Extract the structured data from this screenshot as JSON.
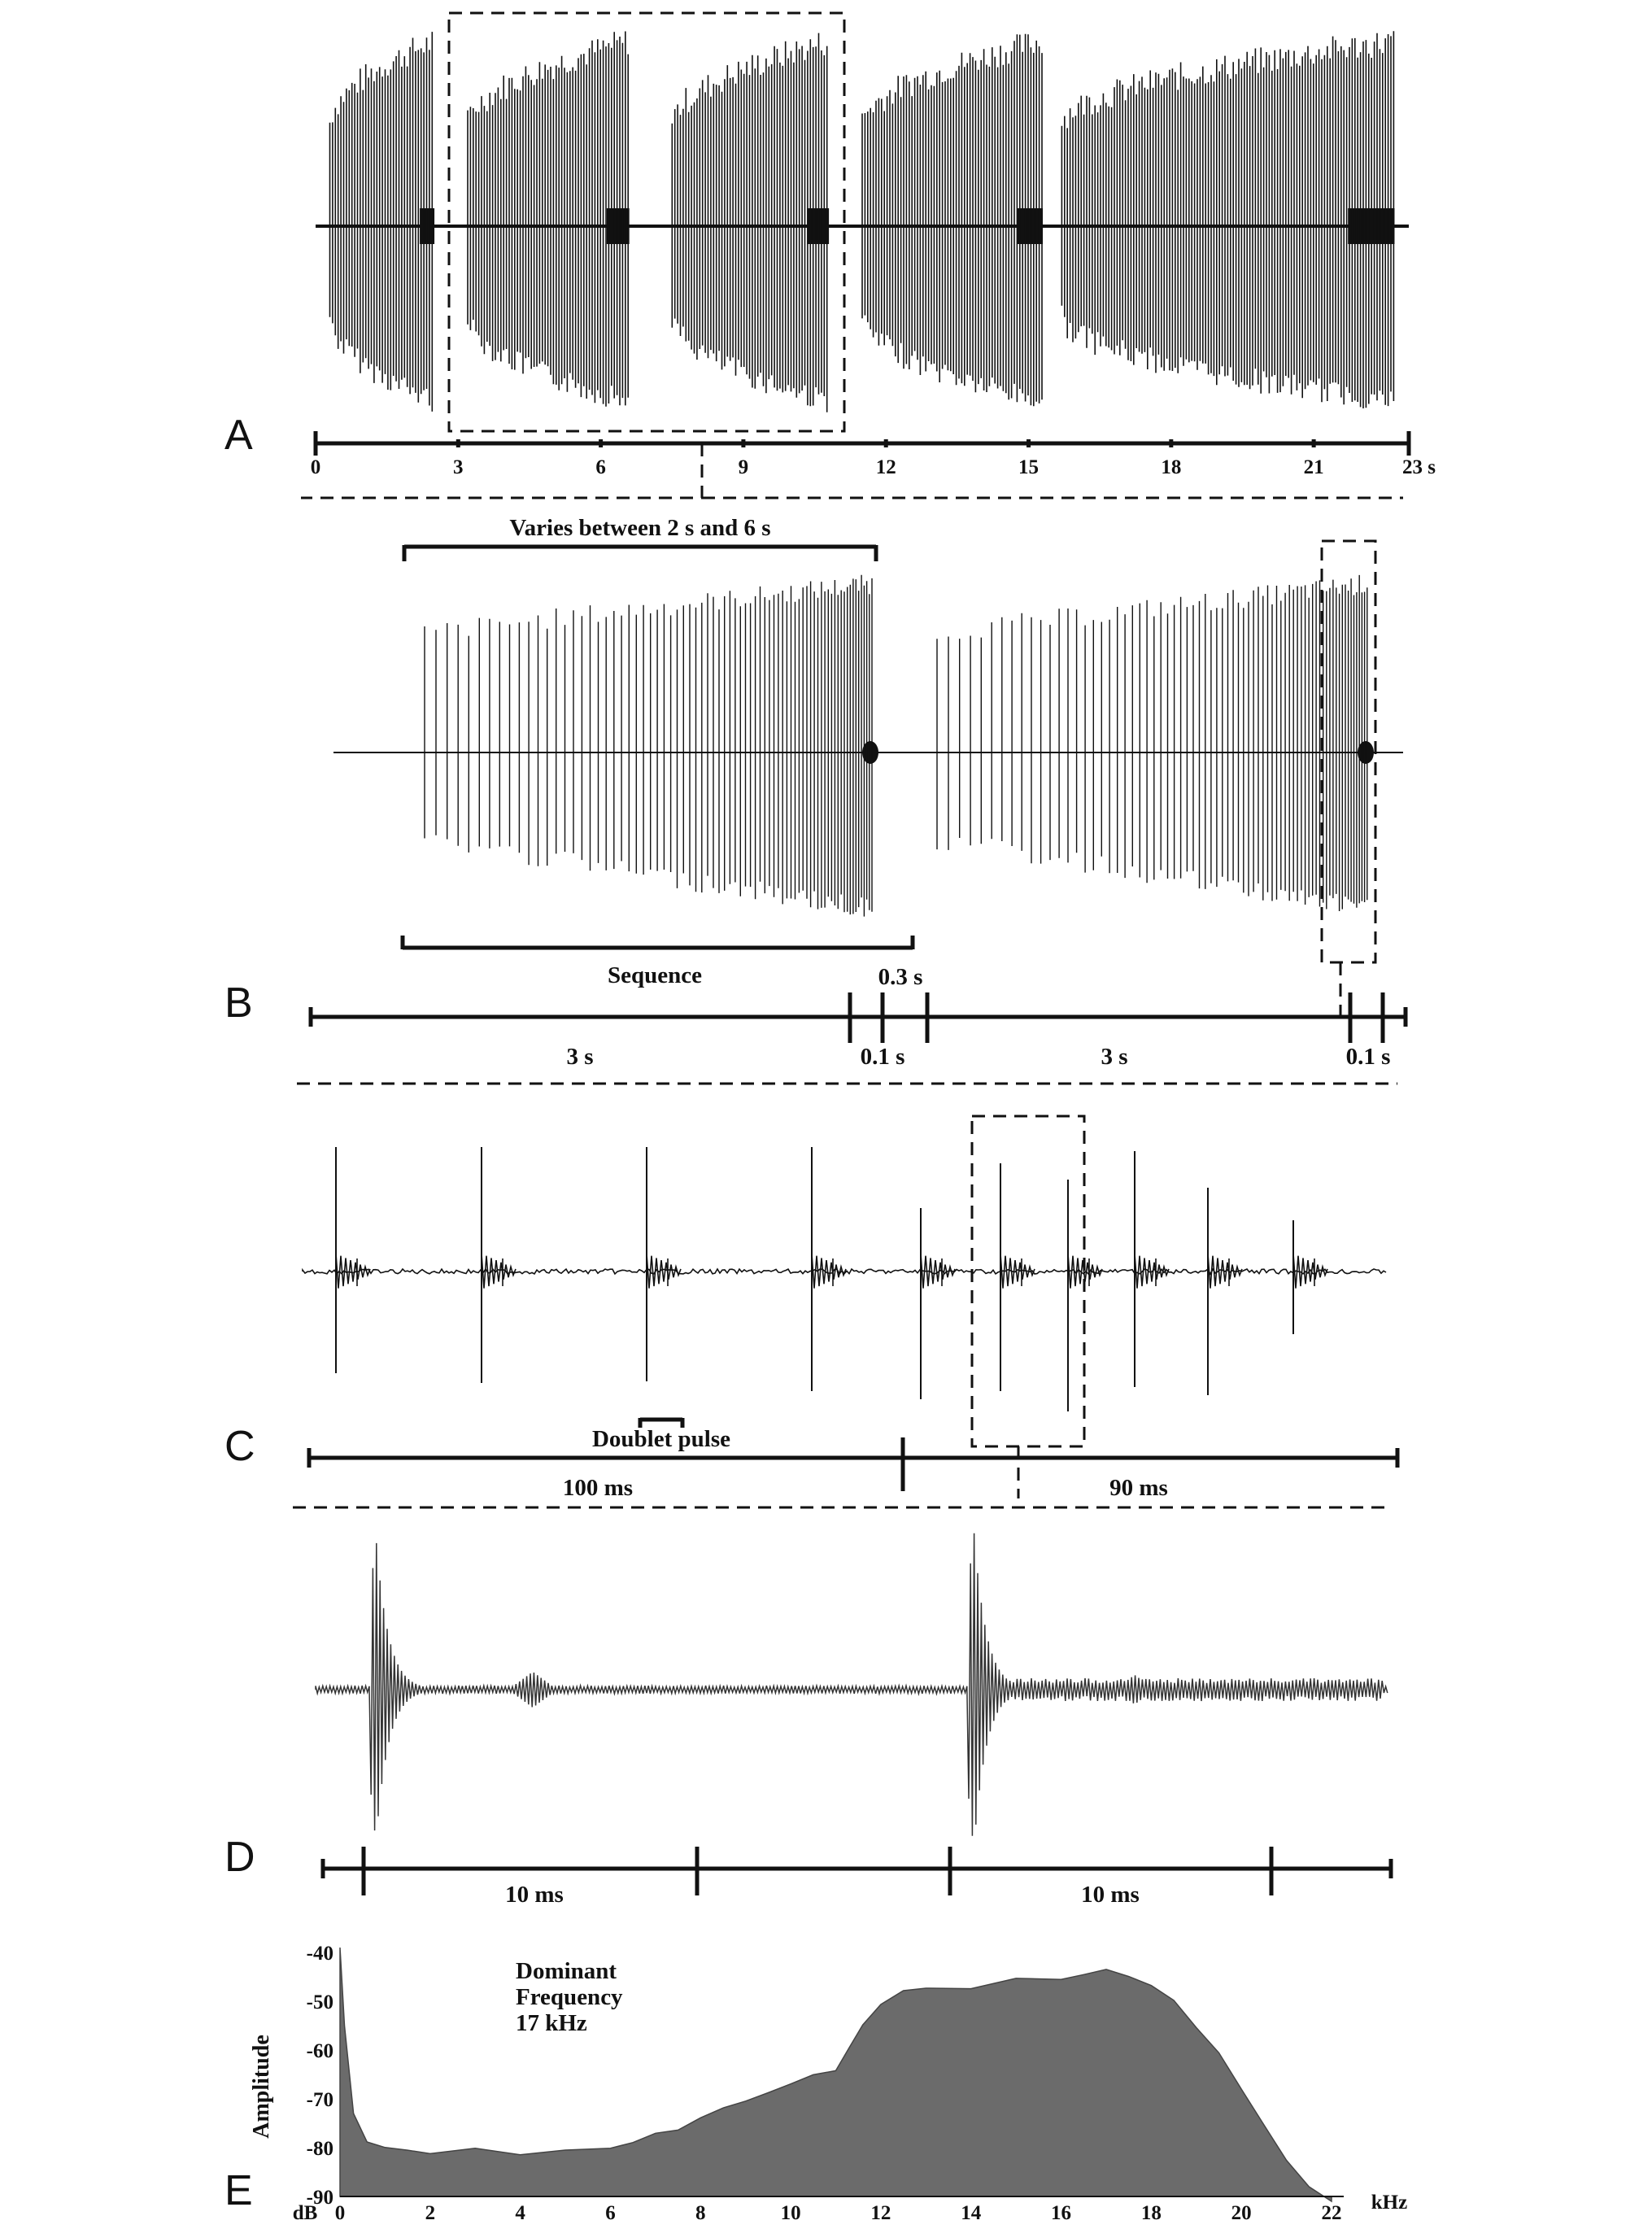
{
  "panels": {
    "A": {
      "label": "A"
    },
    "B": {
      "label": "B",
      "brace_top": "Varies between 2 s and 6 s",
      "brace_bottom": "Sequence",
      "gap_label": "0.3 s",
      "seg_labels": [
        "3 s",
        "0.1 s",
        "3 s",
        "0.1 s"
      ]
    },
    "C": {
      "label": "C",
      "doublet_label": "Doublet pulse",
      "seg_labels": [
        "100 ms",
        "90 ms"
      ]
    },
    "D": {
      "label": "D",
      "seg_labels": [
        "10 ms",
        "10 ms"
      ]
    },
    "E": {
      "label": "E"
    }
  },
  "chart_data": [
    {
      "panel": "A",
      "type": "line",
      "subtype": "oscillogram",
      "xlabel": "s",
      "x_ticks": [
        0,
        3,
        6,
        9,
        12,
        15,
        18,
        21,
        23
      ],
      "x_tick_labels": [
        "0",
        "3",
        "6",
        "9",
        "12",
        "15",
        "18",
        "21",
        "23 s"
      ],
      "xlim": [
        0,
        23
      ],
      "series": [
        {
          "segments_s": [
            [
              0.3,
              2.5
            ],
            [
              3.2,
              6.6
            ],
            [
              7.5,
              10.8
            ],
            [
              11.5,
              15.3
            ],
            [
              15.7,
              22.7
            ]
          ]
        }
      ]
    },
    {
      "panel": "B",
      "type": "line",
      "subtype": "oscillogram",
      "series": [
        {
          "segments_s": [
            [
              0.9,
              4.1
            ],
            [
              4.4,
              7.5
            ]
          ]
        }
      ]
    },
    {
      "panel": "C",
      "type": "line",
      "subtype": "oscillogram"
    },
    {
      "panel": "D",
      "type": "line",
      "subtype": "oscillogram"
    },
    {
      "panel": "E",
      "type": "area",
      "subtype": "power spectrum",
      "title": "Dominant Frequency 17 kHz",
      "title_lines": [
        "Dominant",
        "Frequency",
        "17 kHz"
      ],
      "ylabel": "Amplitude",
      "y_unit": "dB",
      "x_unit": "kHz",
      "xlim": [
        0,
        22
      ],
      "ylim": [
        -90,
        -38
      ],
      "x_ticks": [
        0,
        2,
        4,
        6,
        8,
        10,
        12,
        14,
        16,
        18,
        20,
        22
      ],
      "y_ticks": [
        -40,
        -50,
        -60,
        -70,
        -80,
        -90
      ],
      "x": [
        0,
        0.1,
        0.3,
        0.6,
        1,
        1.5,
        2,
        3,
        4,
        5,
        6,
        6.5,
        7,
        7.5,
        8,
        8.5,
        9,
        9.5,
        10,
        10.5,
        11,
        11.3,
        11.6,
        12,
        12.5,
        13,
        14,
        15,
        16,
        16.5,
        17,
        17.5,
        18,
        18.5,
        19,
        19.5,
        20,
        20.5,
        21,
        21.5,
        22
      ],
      "values": [
        -39,
        -55,
        -73,
        -79,
        -80.5,
        -81,
        -81,
        -80.5,
        -81,
        -81,
        -80,
        -79,
        -77.5,
        -76,
        -74,
        -72,
        -70.5,
        -69,
        -67,
        -65.5,
        -64,
        -59,
        -55,
        -51,
        -48,
        -47,
        -47.5,
        -45.5,
        -45,
        -44,
        -43.5,
        -45,
        -47,
        -50,
        -55,
        -61,
        -68,
        -75,
        -82,
        -88,
        -91
      ]
    }
  ]
}
